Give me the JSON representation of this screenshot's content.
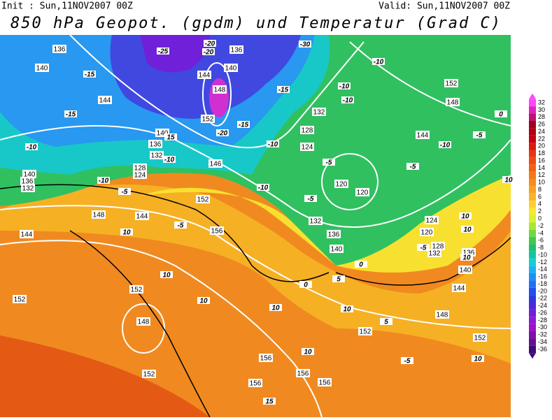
{
  "header": {
    "init": "Init : Sun,11NOV2007 00Z",
    "valid": "Valid: Sun,11NOV2007 00Z",
    "title": "850 hPa Geopot. (gpdm) und Temperatur (Grad C)"
  },
  "geopotential_labels": [
    "136",
    "140",
    "144",
    "136",
    "144",
    "140",
    "148",
    "152",
    "140",
    "136",
    "132",
    "128",
    "124",
    "140",
    "136",
    "132",
    "148",
    "144",
    "152",
    "146",
    "156",
    "144",
    "152",
    "152",
    "148",
    "152",
    "156",
    "156",
    "156",
    "156",
    "152",
    "148",
    "152",
    "144",
    "140",
    "136",
    "132",
    "128",
    "124",
    "120",
    "132",
    "136",
    "140",
    "128",
    "124",
    "120",
    "120",
    "132",
    "144",
    "148",
    "152"
  ],
  "temperature_labels": [
    "-25",
    "-15",
    "-15",
    "-10",
    "-10",
    "-5",
    "10",
    "-5",
    "10",
    "10",
    "10",
    "10",
    "15",
    "-20",
    "-20",
    "-30",
    "-10",
    "-15",
    "-10",
    "-10",
    "-15",
    "-10",
    "-20",
    "-10",
    "-5",
    "-5",
    "-5",
    "-5",
    "-10",
    "-5",
    "10",
    "10",
    "10",
    "10",
    "0",
    "10",
    "5",
    "-5",
    "10",
    "0",
    "5",
    "0",
    "15",
    "-10"
  ],
  "legend": {
    "values": [
      32,
      30,
      28,
      26,
      24,
      22,
      20,
      18,
      16,
      14,
      12,
      10,
      8,
      6,
      4,
      2,
      0,
      -2,
      -4,
      -6,
      -8,
      -10,
      -12,
      -14,
      -16,
      -18,
      -20,
      -22,
      -24,
      -26,
      -28,
      -30,
      -32,
      -34,
      -36
    ],
    "colors": [
      "#ff44ff",
      "#e020c0",
      "#c01070",
      "#a00020",
      "#b00010",
      "#c80010",
      "#dc1a10",
      "#e83410",
      "#f04a10",
      "#f26014",
      "#f47818",
      "#f68c1c",
      "#f8a020",
      "#fab424",
      "#fcd02c",
      "#f8e830",
      "#d8f030",
      "#a8e830",
      "#70d840",
      "#40c850",
      "#20c070",
      "#10c8a0",
      "#10d0d0",
      "#20b0f0",
      "#2090f8",
      "#2070f8",
      "#2050f0",
      "#3038e0",
      "#5028d8",
      "#7020d8",
      "#9018d8",
      "#a010c8",
      "#8010a8",
      "#601090",
      "#40087a"
    ]
  }
}
